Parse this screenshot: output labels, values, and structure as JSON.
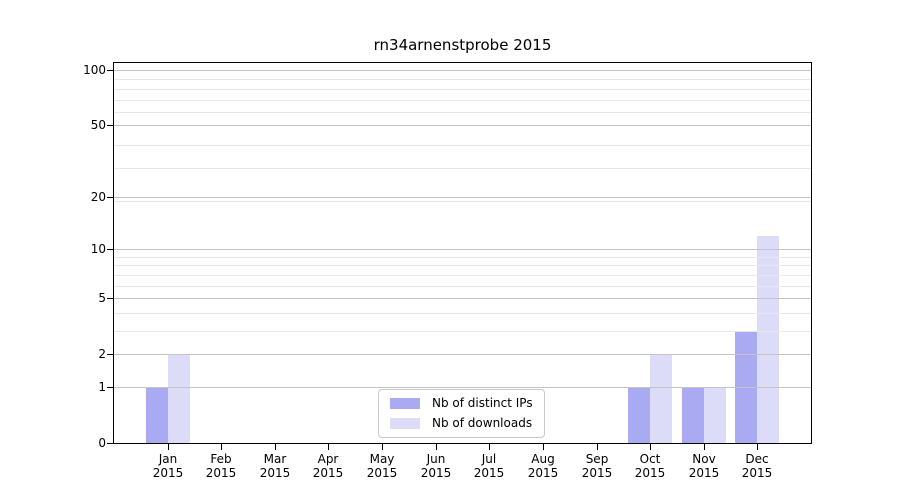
{
  "chart_data": {
    "type": "bar",
    "title": "rn34arnenstprobe 2015",
    "x_categories": [
      {
        "month": "Jan",
        "year": "2015"
      },
      {
        "month": "Feb",
        "year": "2015"
      },
      {
        "month": "Mar",
        "year": "2015"
      },
      {
        "month": "Apr",
        "year": "2015"
      },
      {
        "month": "May",
        "year": "2015"
      },
      {
        "month": "Jun",
        "year": "2015"
      },
      {
        "month": "Jul",
        "year": "2015"
      },
      {
        "month": "Aug",
        "year": "2015"
      },
      {
        "month": "Sep",
        "year": "2015"
      },
      {
        "month": "Oct",
        "year": "2015"
      },
      {
        "month": "Nov",
        "year": "2015"
      },
      {
        "month": "Dec",
        "year": "2015"
      }
    ],
    "series": [
      {
        "name": "Nb of distinct IPs",
        "color": "#aaaaf2",
        "values": [
          1,
          0,
          0,
          0,
          0,
          0,
          0,
          0,
          0,
          1,
          1,
          3
        ]
      },
      {
        "name": "Nb of downloads",
        "color": "#dcdcf8",
        "values": [
          2,
          0,
          0,
          0,
          0,
          0,
          0,
          0,
          0,
          2,
          1,
          12
        ]
      }
    ],
    "y_axis": {
      "scale": "log10(1+value)",
      "tick_values": [
        0,
        1,
        2,
        5,
        10,
        20,
        50,
        100
      ],
      "tick_labels": [
        "0",
        "1",
        "2",
        "5",
        "10",
        "20",
        "50",
        "100"
      ],
      "minor_gridline_values": [
        3,
        4,
        6,
        7,
        8,
        9,
        19,
        29,
        39,
        59,
        69,
        79,
        89
      ],
      "top_value": 109
    },
    "colors": {
      "major_grid": "#c4c4c4",
      "minor_grid": "#e7e7e7",
      "spine": "#000000",
      "text": "#000000",
      "background": "#ffffff"
    },
    "legend": {
      "position": "bottom-center",
      "grid": "on"
    }
  }
}
